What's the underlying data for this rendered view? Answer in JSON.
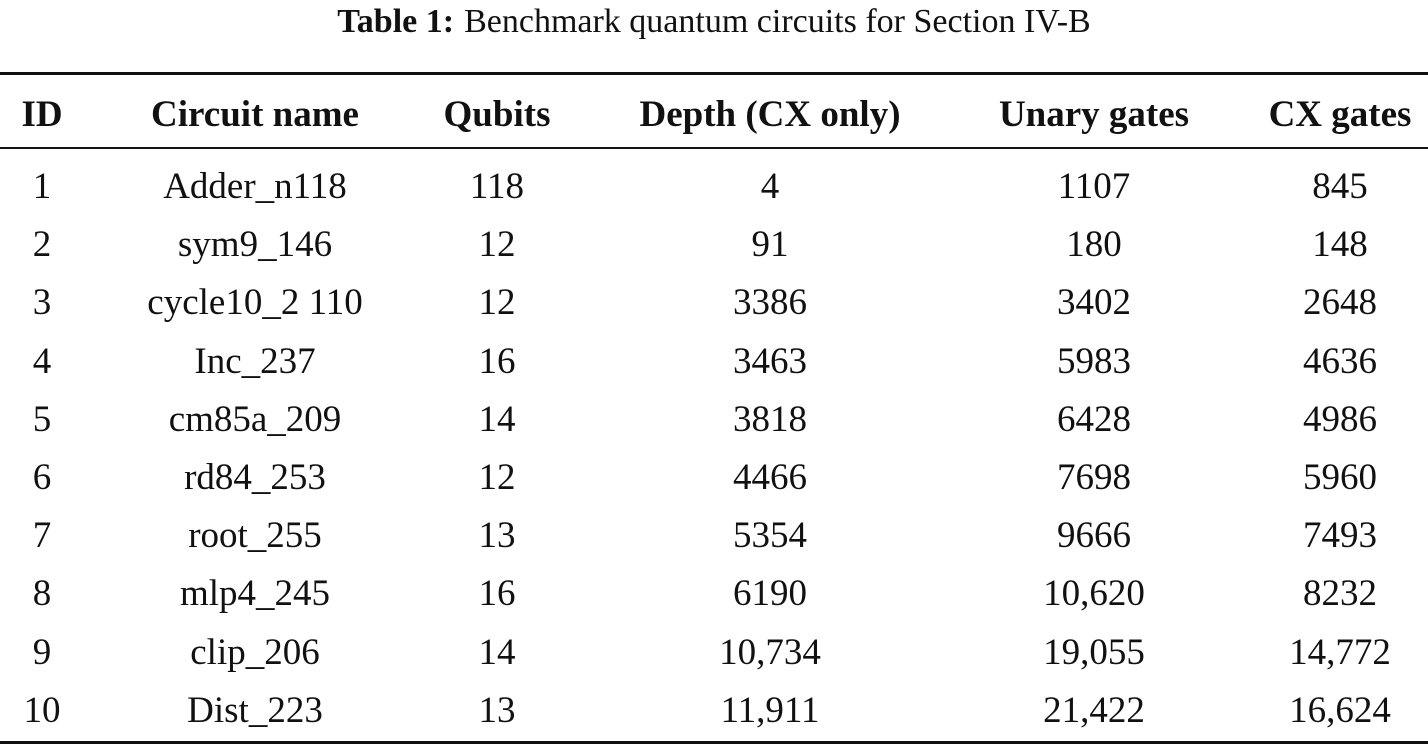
{
  "caption": {
    "label": "Table 1:",
    "text": "Benchmark quantum circuits for Section IV-B"
  },
  "table": {
    "headers": [
      "ID",
      "Circuit name",
      "Qubits",
      "Depth (CX only)",
      "Unary gates",
      "CX gates"
    ],
    "rows": [
      [
        "1",
        "Adder_n118",
        "118",
        "4",
        "1107",
        "845"
      ],
      [
        "2",
        "sym9_146",
        "12",
        "91",
        "180",
        "148"
      ],
      [
        "3",
        "cycle10_2 110",
        "12",
        "3386",
        "3402",
        "2648"
      ],
      [
        "4",
        "Inc_237",
        "16",
        "3463",
        "5983",
        "4636"
      ],
      [
        "5",
        "cm85a_209",
        "14",
        "3818",
        "6428",
        "4986"
      ],
      [
        "6",
        "rd84_253",
        "12",
        "4466",
        "7698",
        "5960"
      ],
      [
        "7",
        "root_255",
        "13",
        "5354",
        "9666",
        "7493"
      ],
      [
        "8",
        "mlp4_245",
        "16",
        "6190",
        "10,620",
        "8232"
      ],
      [
        "9",
        "clip_206",
        "14",
        "10,734",
        "19,055",
        "14,772"
      ],
      [
        "10",
        "Dist_223",
        "13",
        "11,911",
        "21,422",
        "16,624"
      ]
    ]
  }
}
